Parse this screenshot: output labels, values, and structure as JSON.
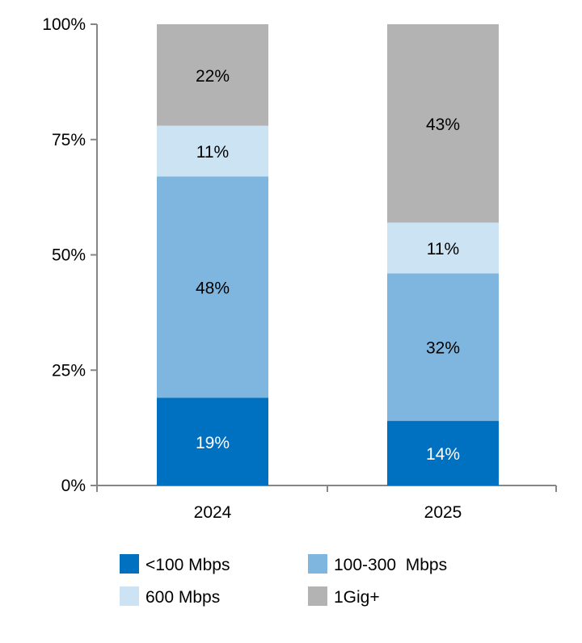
{
  "chart_data": {
    "type": "bar",
    "stacked": true,
    "percent": true,
    "title": "",
    "xlabel": "",
    "ylabel": "",
    "ylim": [
      0,
      100
    ],
    "yticks": [
      0,
      25,
      50,
      75,
      100
    ],
    "ytick_labels": [
      "0%",
      "25%",
      "50%",
      "75%",
      "100%"
    ],
    "categories": [
      "2024",
      "2025"
    ],
    "series": [
      {
        "name": "<100 Mbps",
        "values": [
          19,
          14
        ],
        "labels": [
          "19%",
          "14%"
        ],
        "color": "#0070c0",
        "label_color": "#ffffff"
      },
      {
        "name": "100-300  Mbps",
        "values": [
          48,
          32
        ],
        "labels": [
          "48%",
          "32%"
        ],
        "color": "#7fb6e0",
        "label_color": "#000000"
      },
      {
        "name": "600 Mbps",
        "values": [
          11,
          11
        ],
        "labels": [
          "11%",
          "11%"
        ],
        "color": "#cce3f4",
        "label_color": "#000000"
      },
      {
        "name": "1Gig+",
        "values": [
          22,
          43
        ],
        "labels": [
          "22%",
          "43%"
        ],
        "color": "#b3b3b3",
        "label_color": "#000000"
      }
    ],
    "legend": {
      "placement": "bottom",
      "columns": 2
    },
    "grid": false
  }
}
